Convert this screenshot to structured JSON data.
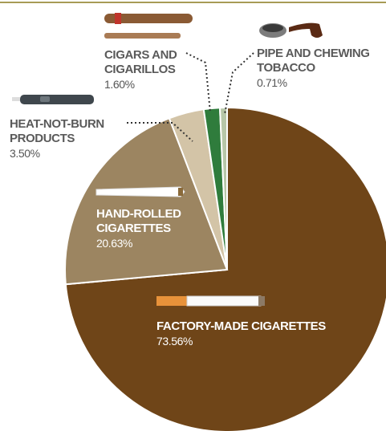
{
  "chart_data": {
    "type": "pie",
    "categories": [
      "FACTORY-MADE CIGARETTES",
      "HAND-ROLLED CIGARETTES",
      "HEAT-NOT-BURN PRODUCTS",
      "CIGARS AND CIGARILLOS",
      "PIPE AND CHEWING TOBACCO"
    ],
    "values": [
      73.56,
      20.63,
      3.5,
      1.6,
      0.71
    ],
    "value_labels": [
      "73.56%",
      "20.63%",
      "3.50%",
      "1.60%",
      "0.71%"
    ],
    "colors": [
      "#6f4518",
      "#9c8561",
      "#d3c4a7",
      "#2f7c3c",
      "#b7c7a9"
    ]
  }
}
